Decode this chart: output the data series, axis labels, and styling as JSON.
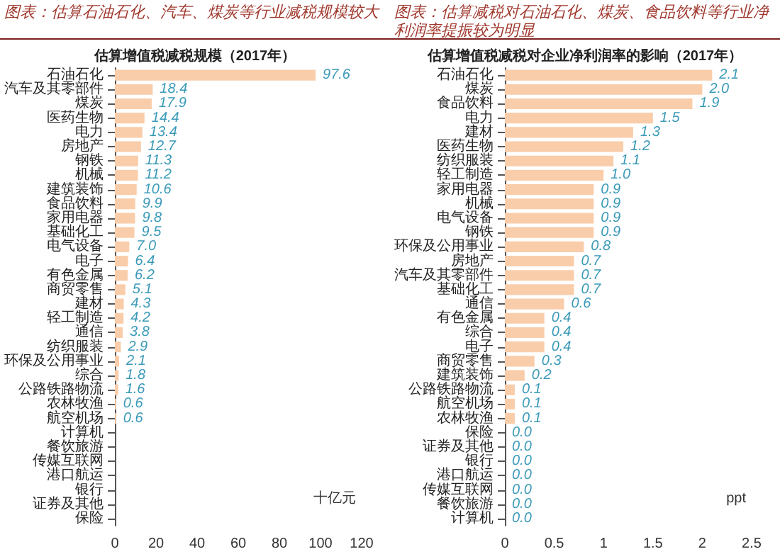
{
  "chart_data": [
    {
      "type": "bar",
      "orientation": "horizontal",
      "title": "图表：估算石油石化、汽车、煤炭等行业减税规模较大",
      "subtitle": "估算增值税减税规模（2017年）",
      "xlabel": "十亿元",
      "categories": [
        "石油石化",
        "汽车及其零部件",
        "煤炭",
        "医药生物",
        "电力",
        "房地产",
        "钢铁",
        "机械",
        "建筑装饰",
        "食品饮料",
        "家用电器",
        "基础化工",
        "电气设备",
        "电子",
        "有色金属",
        "商贸零售",
        "建材",
        "轻工制造",
        "通信",
        "纺织服装",
        "环保及公用事业",
        "综合",
        "公路铁路物流",
        "农林牧渔",
        "航空机场",
        "计算机",
        "餐饮旅游",
        "传媒互联网",
        "港口航运",
        "银行",
        "证券及其他",
        "保险"
      ],
      "values": [
        97.6,
        18.4,
        17.9,
        14.4,
        13.4,
        12.7,
        11.3,
        11.2,
        10.6,
        9.9,
        9.8,
        9.5,
        7.0,
        6.4,
        6.2,
        5.1,
        4.3,
        4.2,
        3.8,
        2.9,
        2.1,
        1.8,
        1.6,
        0.6,
        0.6,
        0,
        0,
        0,
        0,
        0,
        0,
        0
      ],
      "value_labels": [
        "97.6",
        "18.4",
        "17.9",
        "14.4",
        "13.4",
        "12.7",
        "11.3",
        "11.2",
        "10.6",
        "9.9",
        "9.8",
        "9.5",
        "7.0",
        "6.4",
        "6.2",
        "5.1",
        "4.3",
        "4.2",
        "3.8",
        "2.9",
        "2.1",
        "1.8",
        "1.6",
        "0.6",
        "0.6",
        null,
        null,
        null,
        null,
        null,
        null,
        null
      ],
      "color": "#f9cdaa",
      "xlim": [
        0,
        120
      ],
      "xticks": [
        0,
        20,
        40,
        60,
        80,
        100,
        120
      ]
    },
    {
      "type": "bar",
      "orientation": "horizontal",
      "title": "图表：估算减税对石油石化、煤炭、食品饮料等行业净利润率提振较为明显",
      "subtitle": "估算增值税减税对企业净利润率的影响（2017年）",
      "xlabel": "ppt",
      "categories": [
        "石油石化",
        "煤炭",
        "食品饮料",
        "电力",
        "建材",
        "医药生物",
        "纺织服装",
        "轻工制造",
        "家用电器",
        "机械",
        "电气设备",
        "钢铁",
        "环保及公用事业",
        "房地产",
        "汽车及其零部件",
        "基础化工",
        "通信",
        "有色金属",
        "综合",
        "电子",
        "商贸零售",
        "建筑装饰",
        "公路铁路物流",
        "航空机场",
        "农林牧渔",
        "保险",
        "证券及其他",
        "银行",
        "港口航运",
        "传媒互联网",
        "餐饮旅游",
        "计算机"
      ],
      "values": [
        2.1,
        2.0,
        1.9,
        1.5,
        1.3,
        1.2,
        1.1,
        1.0,
        0.9,
        0.9,
        0.9,
        0.9,
        0.8,
        0.7,
        0.7,
        0.7,
        0.6,
        0.4,
        0.4,
        0.4,
        0.3,
        0.2,
        0.1,
        0.1,
        0.1,
        0,
        0,
        0,
        0,
        0,
        0,
        0
      ],
      "value_labels": [
        "2.1",
        "2.0",
        "1.9",
        "1.5",
        "1.3",
        "1.2",
        "1.1",
        "1.0",
        "0.9",
        "0.9",
        "0.9",
        "0.9",
        "0.8",
        "0.7",
        "0.7",
        "0.7",
        "0.6",
        "0.4",
        "0.4",
        "0.4",
        "0.3",
        "0.2",
        "0.1",
        "0.1",
        "0.1",
        "0.0",
        "0.0",
        "0.0",
        "0.0",
        "0.0",
        "0.0",
        "0.0"
      ],
      "color": "#f9cdaa",
      "xlim": [
        0,
        2.5
      ],
      "xticks": [
        0,
        0.5,
        1,
        1.5,
        2,
        2.5
      ]
    }
  ]
}
